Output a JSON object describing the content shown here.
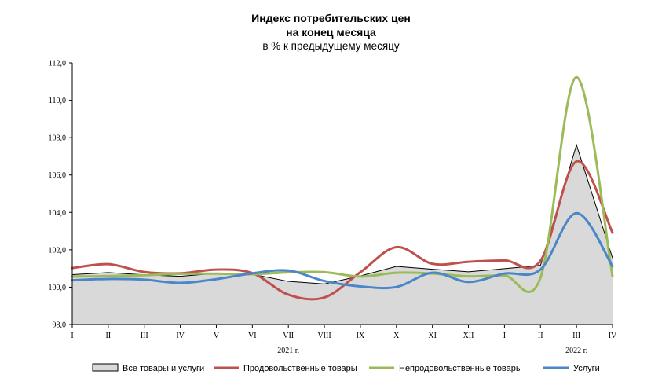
{
  "chart_data": {
    "type": "area",
    "title": "Индекс потребительских цен",
    "title_line2": "на конец месяца",
    "subtitle": "в % к предыдущему месяцу",
    "categories": [
      "I",
      "II",
      "III",
      "IV",
      "V",
      "VI",
      "VII",
      "VIII",
      "IX",
      "X",
      "XI",
      "XII",
      "I",
      "II",
      "III",
      "IV"
    ],
    "year_labels": [
      {
        "label": "2021 г.",
        "after_index": 6
      },
      {
        "label": "2022 г.",
        "after_index": 14
      }
    ],
    "ylim": [
      98.0,
      112.0
    ],
    "yticks": [
      "98,0",
      "100,0",
      "102,0",
      "104,0",
      "106,0",
      "108,0",
      "110,0",
      "112,0"
    ],
    "grid": false,
    "legend_position": "bottom",
    "series": [
      {
        "name": "Все товары и услуги",
        "style": "area",
        "color": "#d9d9d9",
        "stroke": "#000000",
        "values": [
          100.67,
          100.78,
          100.66,
          100.58,
          100.74,
          100.69,
          100.31,
          100.17,
          100.6,
          101.11,
          100.96,
          100.82,
          100.99,
          101.17,
          107.61,
          101.56
        ]
      },
      {
        "name": "Продовольственные товары",
        "style": "line",
        "color": "#c0504d",
        "values": [
          101.02,
          101.23,
          100.81,
          100.74,
          100.94,
          100.75,
          99.6,
          99.45,
          100.8,
          102.14,
          101.25,
          101.36,
          101.43,
          101.41,
          106.73,
          102.91
        ]
      },
      {
        "name": "Непродовольственные товары",
        "style": "line",
        "color": "#9bbb59",
        "values": [
          100.57,
          100.59,
          100.64,
          100.71,
          100.72,
          100.69,
          100.79,
          100.8,
          100.57,
          100.77,
          100.73,
          100.58,
          100.63,
          100.5,
          111.24,
          100.59
        ]
      },
      {
        "name": "Услуги",
        "style": "line",
        "color": "#4a86c8",
        "values": [
          100.37,
          100.44,
          100.4,
          100.23,
          100.43,
          100.74,
          100.89,
          100.33,
          100.04,
          100.01,
          100.77,
          100.28,
          100.73,
          100.94,
          103.96,
          101.12
        ]
      }
    ]
  }
}
